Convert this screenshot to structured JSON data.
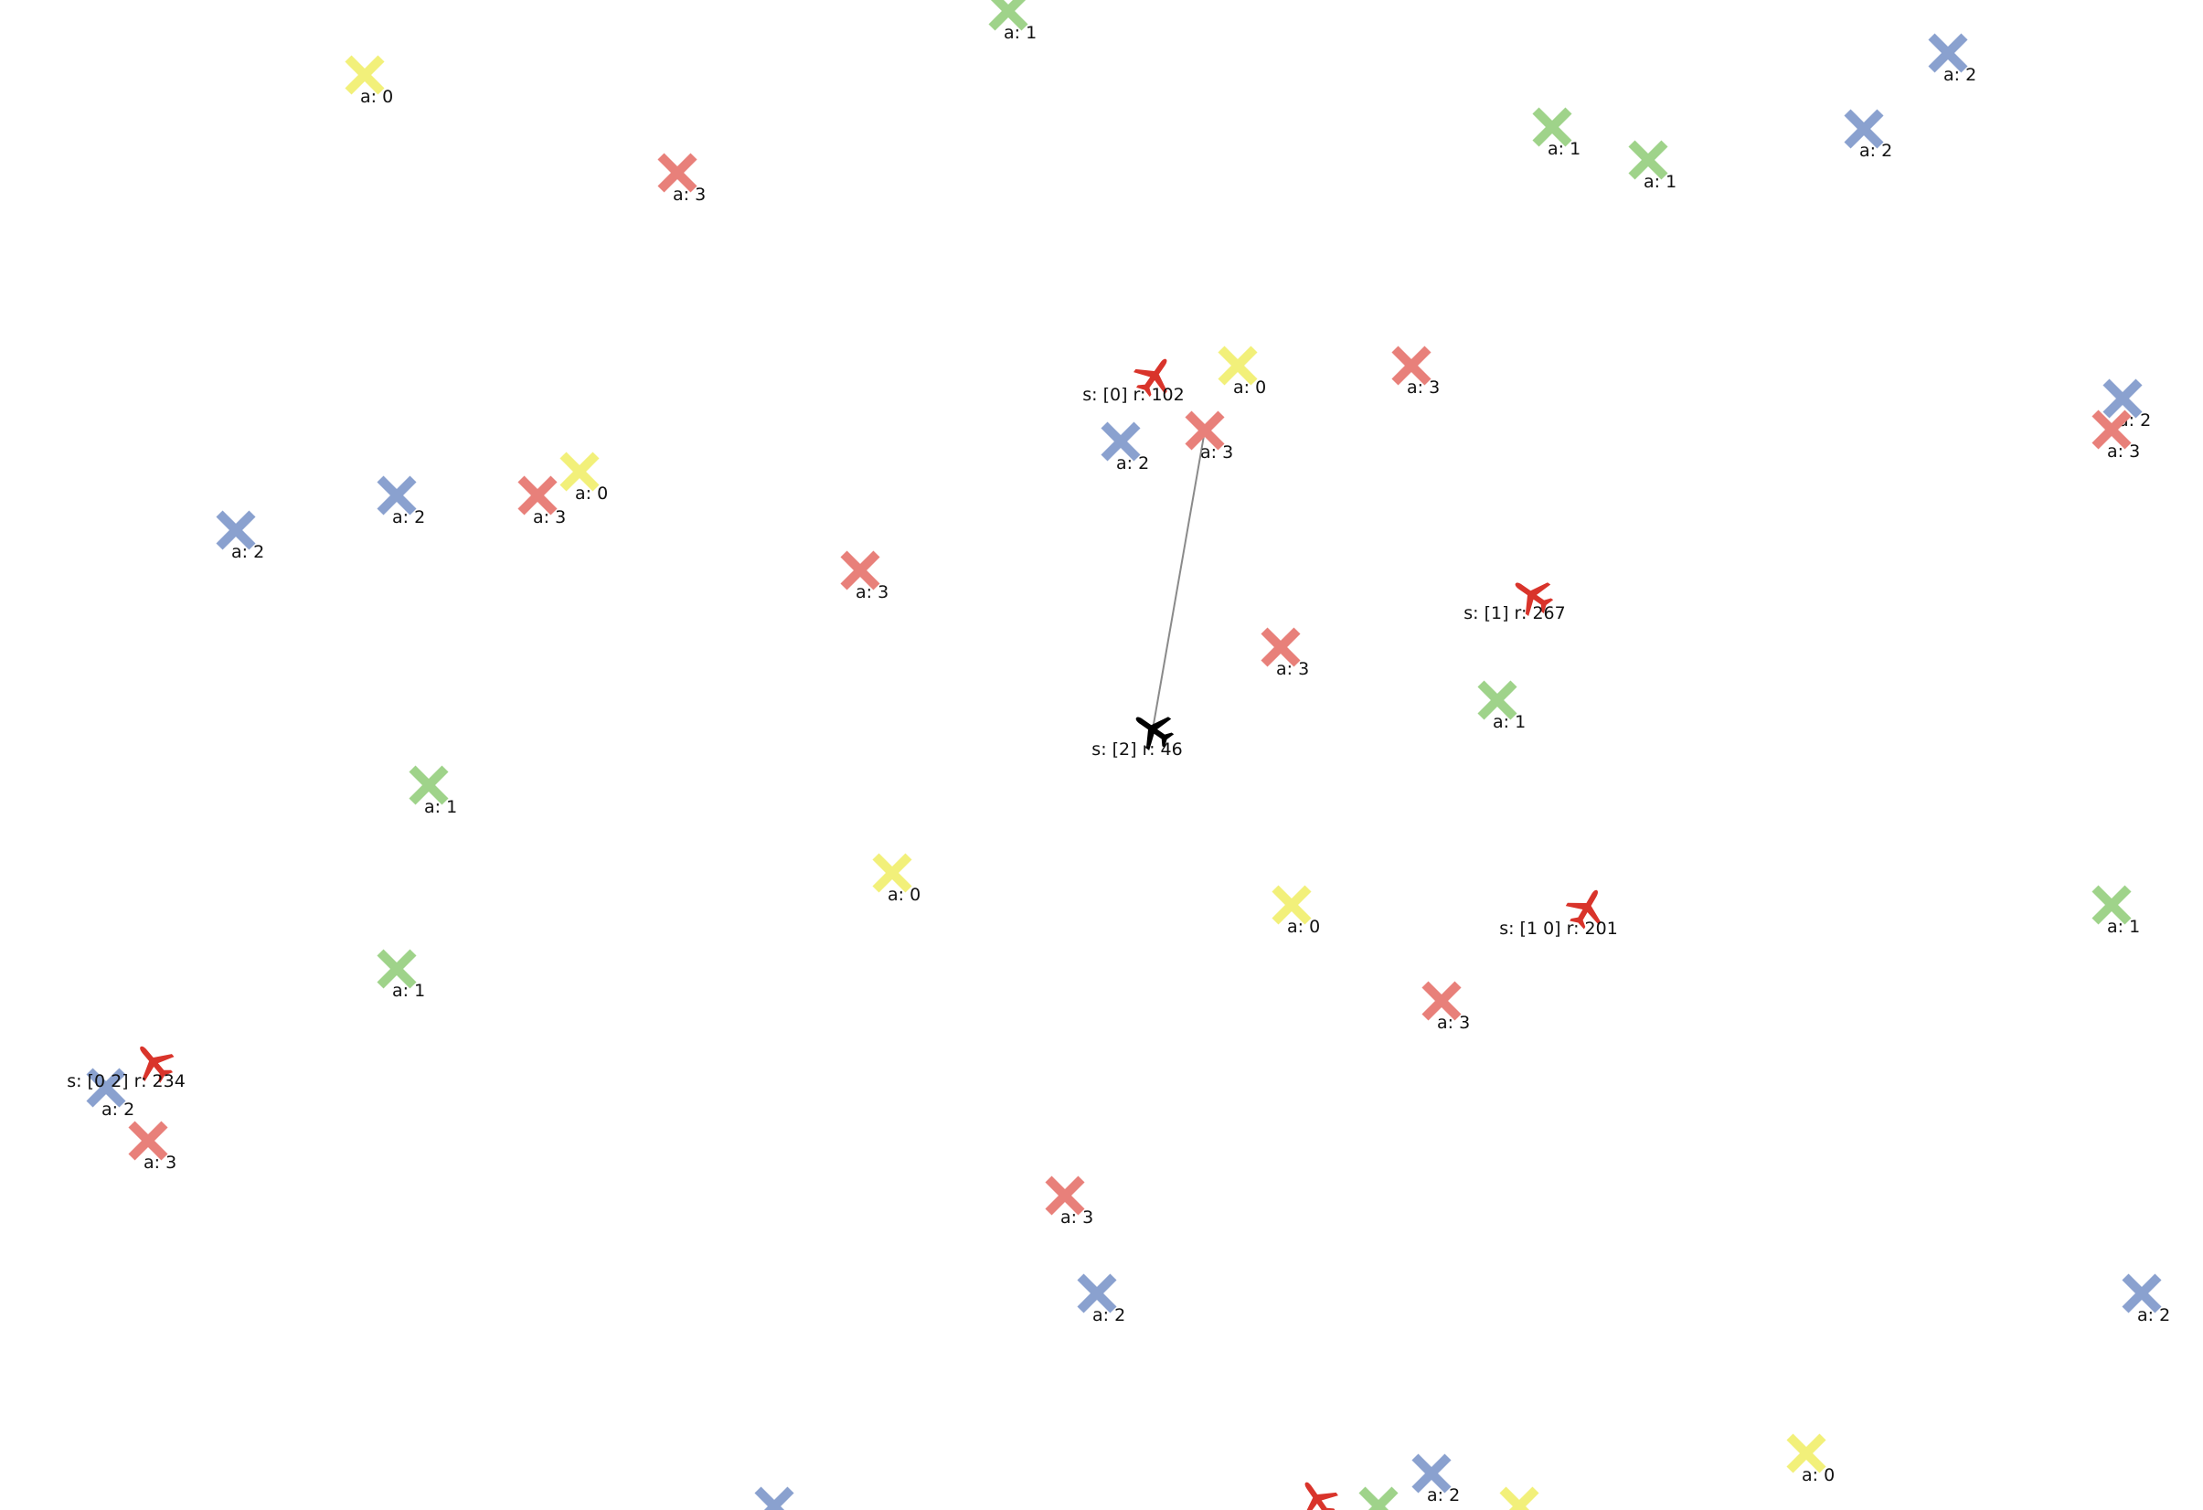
{
  "colors": {
    "action_0": "#f2f07a",
    "action_1": "#9fd38a",
    "action_2": "#8aa1cf",
    "action_3": "#e8807a",
    "aircraft_other": "#d9342b",
    "aircraft_selected": "#000000",
    "link_line": "#8a8a8a",
    "background": "#ffffff"
  },
  "markers": [
    {
      "action": 1,
      "label": "a: 1"
    },
    {
      "action": 0,
      "label": "a: 0"
    },
    {
      "action": 3,
      "label": "a: 3"
    },
    {
      "action": 2,
      "label": "a: 2"
    },
    {
      "action": 2,
      "label": "a: 2"
    },
    {
      "action": 1,
      "label": "a: 1"
    },
    {
      "action": 1,
      "label": "a: 1"
    },
    {
      "action": 0,
      "label": "a: 0"
    },
    {
      "action": 3,
      "label": "a: 3"
    },
    {
      "action": 3,
      "label": "a: 3"
    },
    {
      "action": 2,
      "label": "a: 2"
    },
    {
      "action": 2,
      "label": "a: 2"
    },
    {
      "action": 3,
      "label": "a: 3"
    },
    {
      "action": 2,
      "label": "a: 2"
    },
    {
      "action": 2,
      "label": "a: 2"
    },
    {
      "action": 3,
      "label": "a: 3"
    },
    {
      "action": 0,
      "label": "a: 0"
    },
    {
      "action": 3,
      "label": "a: 3"
    },
    {
      "action": 3,
      "label": "a: 3"
    },
    {
      "action": 1,
      "label": "a: 1"
    },
    {
      "action": 1,
      "label": "a: 1"
    },
    {
      "action": 0,
      "label": "a: 0"
    },
    {
      "action": 0,
      "label": "a: 0"
    },
    {
      "action": 1,
      "label": "a: 1"
    },
    {
      "action": 1,
      "label": "a: 1"
    },
    {
      "action": 3,
      "label": "a: 3"
    },
    {
      "action": 2,
      "label": "a: 2"
    },
    {
      "action": 3,
      "label": "a: 3"
    },
    {
      "action": 3,
      "label": "a: 3"
    },
    {
      "action": 2,
      "label": "a: 2"
    },
    {
      "action": 2,
      "label": "a: 2"
    },
    {
      "action": 2,
      "label": "a: 2"
    },
    {
      "action": 0,
      "label": "a: 0"
    },
    {
      "action": 2,
      "label": ""
    },
    {
      "action": 1,
      "label": ""
    },
    {
      "action": 0,
      "label": ""
    }
  ],
  "aircraft": [
    {
      "label": "s: [0] r: 102",
      "selected": false
    },
    {
      "label": "s: [1] r: 267",
      "selected": false
    },
    {
      "label": "s: [2] r: 46",
      "selected": true
    },
    {
      "label": "s: [1 0] r: 201",
      "selected": false
    },
    {
      "label": "s: [0 2] r: 234",
      "selected": false
    },
    {
      "label": "",
      "selected": false
    }
  ],
  "link": {
    "from_aircraft": 2,
    "to_marker": 9
  }
}
